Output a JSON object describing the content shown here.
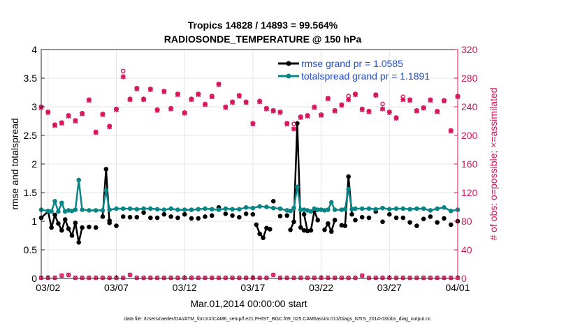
{
  "chart_data": {
    "type": "line",
    "title": "Tropics 14828 / 14893 = 99.564%",
    "subtitle": "RADIOSONDE_TEMPERATURE @ 150 hPa",
    "xlabel": "Mar.01,2014 00:00:00 start",
    "ylabel": "rmse and totalspread",
    "y2label": "# of obs: o=possible; ×=assimilated",
    "footnote": "data file: /Users/raeder/DAI/ATM_forcXX/CAM6_setup/f.e21.FHIST_BGC.f09_025.CAM6assim.011/Diags_NTrS_2014-03/obs_diag_output.nc",
    "xlim": [
      0.5,
      31
    ],
    "ylim": [
      0,
      4
    ],
    "y2lim": [
      0,
      320
    ],
    "xticks": [
      1,
      6,
      11,
      16,
      21,
      26,
      31
    ],
    "xtick_labels": [
      "03/02",
      "03/07",
      "03/12",
      "03/17",
      "03/22",
      "03/27",
      "04/01"
    ],
    "yticks": [
      0,
      0.5,
      1,
      1.5,
      2,
      2.5,
      3,
      3.5,
      4
    ],
    "ytick_labels": [
      "0",
      "0.5",
      "1",
      "1.5",
      "2",
      "2.5",
      "3",
      "3.5",
      "4"
    ],
    "y2ticks": [
      0,
      40,
      80,
      120,
      160,
      200,
      240,
      280,
      320
    ],
    "y2tick_labels": [
      "0",
      "40",
      "80",
      "120",
      "160",
      "200",
      "240",
      "280",
      "320"
    ],
    "legend": [
      "rmse grand pr = 1.0585",
      "totalspread grand pr = 1.1891"
    ],
    "legend_position": "top-right",
    "series": [
      {
        "name": "rmse",
        "color": "#000000",
        "segments": [
          {
            "x": [
              0.5,
              1.0,
              1.25,
              1.5,
              1.75,
              2.0,
              2.25,
              2.5,
              2.75,
              3.0,
              3.25,
              3.5
            ],
            "y": [
              1.06,
              1.17,
              0.89,
              1.11,
              0.96,
              0.84,
              1.03,
              0.87,
              0.75,
              0.97,
              0.63,
              0.89
            ]
          },
          {
            "x": [
              5.0,
              5.25,
              5.5
            ],
            "y": [
              1.08,
              1.91,
              0.97
            ]
          },
          {
            "x": [
              16.25,
              16.5,
              16.75,
              17.0,
              17.25
            ],
            "y": [
              0.94,
              0.78,
              0.71,
              0.88,
              0.86
            ]
          },
          {
            "x": [
              18.75,
              19.0,
              19.25,
              19.5,
              19.75
            ],
            "y": [
              0.85,
              0.99,
              2.71,
              0.89,
              0.84
            ]
          },
          {
            "x": [
              19.75,
              20.0,
              20.25,
              20.5,
              20.75
            ],
            "y": [
              1.12,
              0.83,
              0.84,
              1.18,
              1.02
            ]
          },
          {
            "x": [
              21.25,
              21.5,
              21.75,
              22.0
            ],
            "y": [
              0.85,
              0.96,
              0.82,
              1.02
            ]
          },
          {
            "x": [
              22.75,
              23.0,
              23.25
            ],
            "y": [
              0.92,
              1.78,
              1.12
            ]
          }
        ],
        "points": {
          "x": [
            4.0,
            4.5,
            5.5,
            6.0,
            6.5,
            7.0,
            7.5,
            8.0,
            8.5,
            9.0,
            9.5,
            10.0,
            10.5,
            11.0,
            11.5,
            12.0,
            12.5,
            13.0,
            13.5,
            14.0,
            14.5,
            15.0,
            15.5,
            16.0,
            17.5,
            18.0,
            18.5,
            22.5,
            23.5,
            24.0,
            24.5,
            25.0,
            25.5,
            26.0,
            26.5,
            27.0,
            27.5,
            28.0,
            28.5,
            29.0,
            29.5,
            30.0,
            30.5,
            31.0
          ],
          "y": [
            0.9,
            0.89,
            1.01,
            0.92,
            1.08,
            1.07,
            1.07,
            1.15,
            1.06,
            1.06,
            1.12,
            1.08,
            1.06,
            1.12,
            1.05,
            1.05,
            1.08,
            1.1,
            1.24,
            1.13,
            1.1,
            1.07,
            1.13,
            1.12,
            1.35,
            1.09,
            1.1,
            0.93,
            1.02,
            1.07,
            1.06,
            1.17,
            0.99,
            1.12,
            1.06,
            1.06,
            0.98,
            0.92,
            1.04,
            1.08,
            0.98,
            1.05,
            0.94,
            1.0
          ]
        }
      },
      {
        "name": "totalspread",
        "color": "#0a8585",
        "segments": [
          {
            "x": [
              0.5,
              1.0,
              1.25,
              1.5,
              1.75,
              2.0,
              2.25,
              2.5,
              2.75,
              3.0,
              3.25,
              3.5,
              4.0,
              4.5,
              5.0,
              5.25,
              5.5,
              6.0,
              6.5,
              7.0,
              7.5,
              8.0,
              8.5,
              9.0,
              9.5,
              10.0,
              10.5,
              11.0,
              11.5,
              12.0,
              12.5,
              13.0,
              13.5,
              14.0,
              14.5,
              15.0,
              15.5,
              16.0,
              16.5,
              17.0,
              17.5,
              18.0,
              18.5,
              18.75,
              19.0,
              19.25,
              19.5,
              19.75,
              20.0,
              20.25,
              20.5,
              20.75,
              21.0,
              21.25,
              21.5,
              21.75,
              22.0,
              22.5,
              22.75,
              23.0,
              23.25,
              23.5,
              24.0,
              24.5,
              25.0,
              25.5,
              26.0,
              26.5,
              27.0,
              27.5,
              28.0,
              28.5,
              29.0,
              29.5,
              30.0,
              30.5,
              31.0
            ],
            "y": [
              1.2,
              1.18,
              1.17,
              1.35,
              1.17,
              1.32,
              1.17,
              1.19,
              1.18,
              1.2,
              1.72,
              1.2,
              1.19,
              1.19,
              1.19,
              1.54,
              1.2,
              1.22,
              1.22,
              1.22,
              1.21,
              1.22,
              1.22,
              1.21,
              1.2,
              1.22,
              1.2,
              1.2,
              1.2,
              1.21,
              1.22,
              1.21,
              1.2,
              1.22,
              1.21,
              1.21,
              1.24,
              1.23,
              1.26,
              1.25,
              1.23,
              1.22,
              1.19,
              1.18,
              1.23,
              1.6,
              1.2,
              1.2,
              1.19,
              1.17,
              1.22,
              1.2,
              1.2,
              1.19,
              1.2,
              1.33,
              1.2,
              1.2,
              1.21,
              1.56,
              1.21,
              1.22,
              1.22,
              1.22,
              1.21,
              1.23,
              1.21,
              1.22,
              1.22,
              1.21,
              1.22,
              1.22,
              1.19,
              1.22,
              1.24,
              1.18,
              1.2
            ]
          }
        ]
      }
    ],
    "obs_possible": {
      "marker": "o",
      "color": "#d6145a",
      "x": [
        0.5,
        1.0,
        1.5,
        2.0,
        2.5,
        3.0,
        3.5,
        4.0,
        4.5,
        5.0,
        5.5,
        6.0,
        6.5,
        7.0,
        7.5,
        8.0,
        8.5,
        9.0,
        9.5,
        10.0,
        10.5,
        11.0,
        11.5,
        12.0,
        12.5,
        13.0,
        13.5,
        14.0,
        14.5,
        15.0,
        15.5,
        16.0,
        16.5,
        17.0,
        17.5,
        18.0,
        18.5,
        19.0,
        19.5,
        20.0,
        20.5,
        21.0,
        21.5,
        22.0,
        22.5,
        23.0,
        23.5,
        24.0,
        24.5,
        25.0,
        25.5,
        26.0,
        26.5,
        27.0,
        27.5,
        28.0,
        28.5,
        29.0,
        29.5,
        30.0,
        30.5,
        31.0
      ],
      "y": [
        240,
        233,
        215,
        218,
        228,
        221,
        231,
        250,
        205,
        230,
        213,
        237,
        290,
        251,
        266,
        251,
        265,
        236,
        262,
        238,
        258,
        232,
        251,
        258,
        244,
        255,
        272,
        240,
        247,
        256,
        247,
        217,
        248,
        238,
        235,
        233,
        217,
        216,
        226,
        228,
        240,
        229,
        252,
        235,
        243,
        255,
        258,
        237,
        234,
        257,
        244,
        233,
        225,
        254,
        250,
        235,
        239,
        250,
        234,
        249,
        207,
        255
      ]
    },
    "obs_assimilated": {
      "marker": "x",
      "color": "#d6145a",
      "x": [
        0.5,
        1.0,
        1.5,
        2.0,
        2.5,
        3.0,
        3.5,
        4.0,
        4.5,
        5.0,
        5.5,
        6.0,
        6.5,
        7.0,
        7.5,
        8.0,
        8.5,
        9.0,
        9.5,
        10.0,
        10.5,
        11.0,
        11.5,
        12.0,
        12.5,
        13.0,
        13.5,
        14.0,
        14.5,
        15.0,
        15.5,
        16.0,
        16.5,
        17.0,
        17.5,
        18.0,
        18.5,
        19.0,
        19.5,
        20.0,
        20.5,
        21.0,
        21.5,
        22.0,
        22.5,
        23.0,
        23.5,
        24.0,
        24.5,
        25.0,
        25.5,
        26.0,
        26.5,
        27.0,
        27.5,
        28.0,
        28.5,
        29.0,
        29.5,
        30.0,
        30.5,
        31.0
      ],
      "y": [
        239,
        232,
        214,
        217,
        227,
        220,
        230,
        249,
        204,
        229,
        212,
        236,
        282,
        250,
        265,
        250,
        264,
        235,
        261,
        237,
        257,
        231,
        250,
        257,
        243,
        254,
        271,
        239,
        246,
        255,
        246,
        216,
        247,
        237,
        234,
        232,
        216,
        209,
        225,
        227,
        239,
        228,
        251,
        234,
        242,
        250,
        257,
        236,
        233,
        256,
        237,
        232,
        224,
        250,
        249,
        234,
        238,
        249,
        233,
        248,
        206,
        254
      ]
    },
    "obs_bottom_possible": {
      "x": [
        0.5,
        1.0,
        1.5,
        2.0,
        2.5,
        3.0,
        3.5,
        4.0,
        4.5,
        5.0,
        5.5,
        6.0,
        6.5,
        7.0,
        7.5,
        8.0,
        8.5,
        9.0,
        9.5,
        10.0,
        10.5,
        11.0,
        11.5,
        12.0,
        12.5,
        13.0,
        13.5,
        14.0,
        14.5,
        15.0,
        15.5,
        16.0,
        16.5,
        17.0,
        17.5,
        18.0,
        18.5,
        19.0,
        19.5,
        20.0,
        20.5,
        21.0,
        21.5,
        22.0,
        22.5,
        23.0,
        23.5,
        24.0,
        24.5,
        25.0,
        25.5,
        26.0,
        26.5,
        27.0,
        27.5,
        28.0,
        28.5,
        29.0,
        29.5,
        30.0,
        30.5,
        31.0
      ],
      "y": [
        1,
        1,
        1,
        4,
        5,
        1,
        1,
        1,
        1,
        1,
        1,
        1,
        1,
        5,
        1,
        1,
        1,
        1,
        1,
        1,
        1,
        1,
        1,
        1,
        1,
        1,
        1,
        1,
        1,
        1,
        1,
        1,
        1,
        1,
        5,
        1,
        1,
        1,
        1,
        1,
        1,
        1,
        1,
        1,
        1,
        1,
        1,
        4,
        1,
        1,
        1,
        1,
        1,
        1,
        1,
        1,
        1,
        1,
        1,
        1,
        1,
        1
      ]
    }
  }
}
